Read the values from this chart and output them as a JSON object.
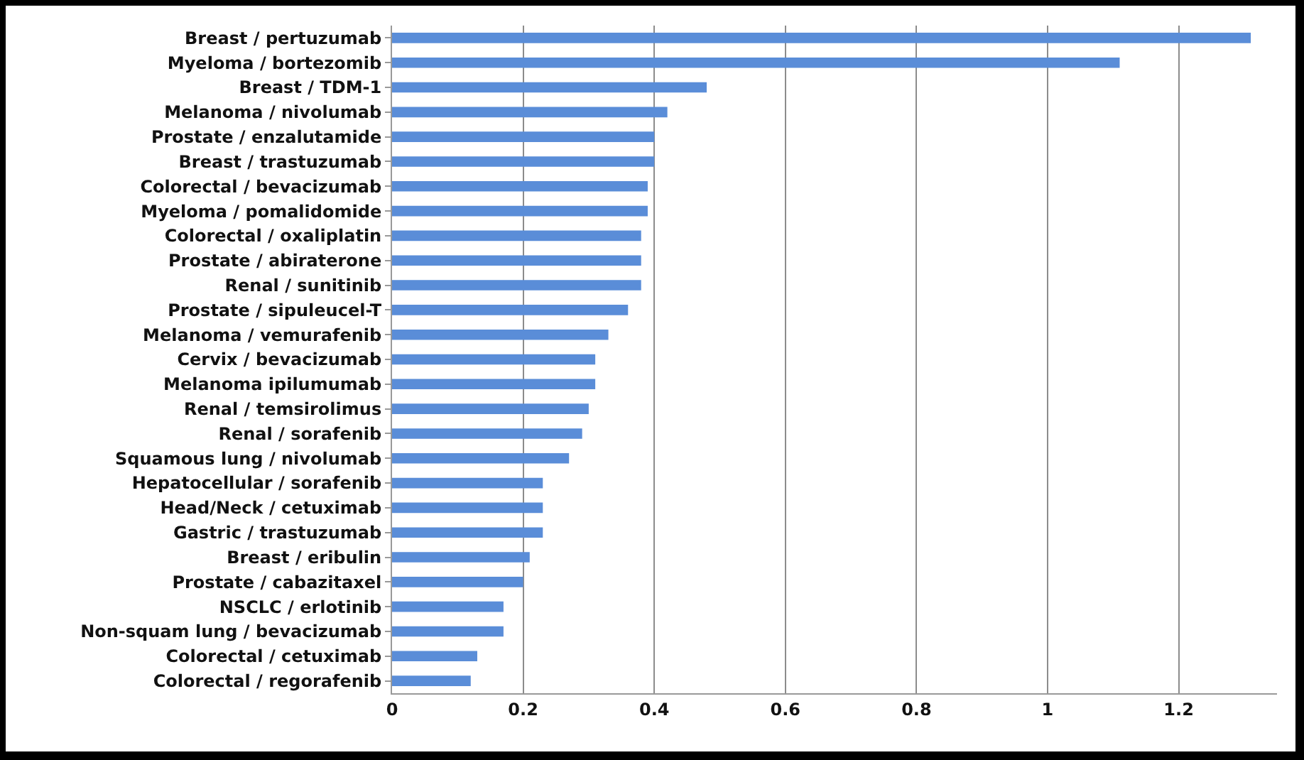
{
  "chart_data": {
    "type": "bar",
    "orientation": "horizontal",
    "categories": [
      "Breast / pertuzumab",
      "Myeloma / bortezomib",
      "Breast / TDM-1",
      "Melanoma / nivolumab",
      "Prostate / enzalutamide",
      "Breast / trastuzumab",
      "Colorectal / bevacizumab",
      "Myeloma / pomalidomide",
      "Colorectal / oxaliplatin",
      "Prostate / abiraterone",
      "Renal / sunitinib",
      "Prostate / sipuleucel-T",
      "Melanoma / vemurafenib",
      "Cervix / bevacizumab",
      "Melanoma ipilumumab",
      "Renal / temsirolimus",
      "Renal / sorafenib",
      "Squamous lung / nivolumab",
      "Hepatocellular / sorafenib",
      "Head/Neck / cetuximab",
      "Gastric / trastuzumab",
      "Breast / eribulin",
      "Prostate / cabazitaxel",
      "NSCLC / erlotinib",
      "Non-squam lung / bevacizumab",
      "Colorectal / cetuximab",
      "Colorectal / regorafenib"
    ],
    "values": [
      1.31,
      1.11,
      0.48,
      0.42,
      0.4,
      0.4,
      0.39,
      0.39,
      0.38,
      0.38,
      0.38,
      0.36,
      0.33,
      0.31,
      0.31,
      0.3,
      0.29,
      0.27,
      0.23,
      0.23,
      0.23,
      0.21,
      0.2,
      0.17,
      0.17,
      0.13,
      0.12
    ],
    "color": "#5a8dd8",
    "xlim": [
      0,
      1.35
    ],
    "xticks": [
      0,
      0.2,
      0.4,
      0.6,
      0.8,
      1,
      1.2
    ],
    "grid": "x"
  }
}
